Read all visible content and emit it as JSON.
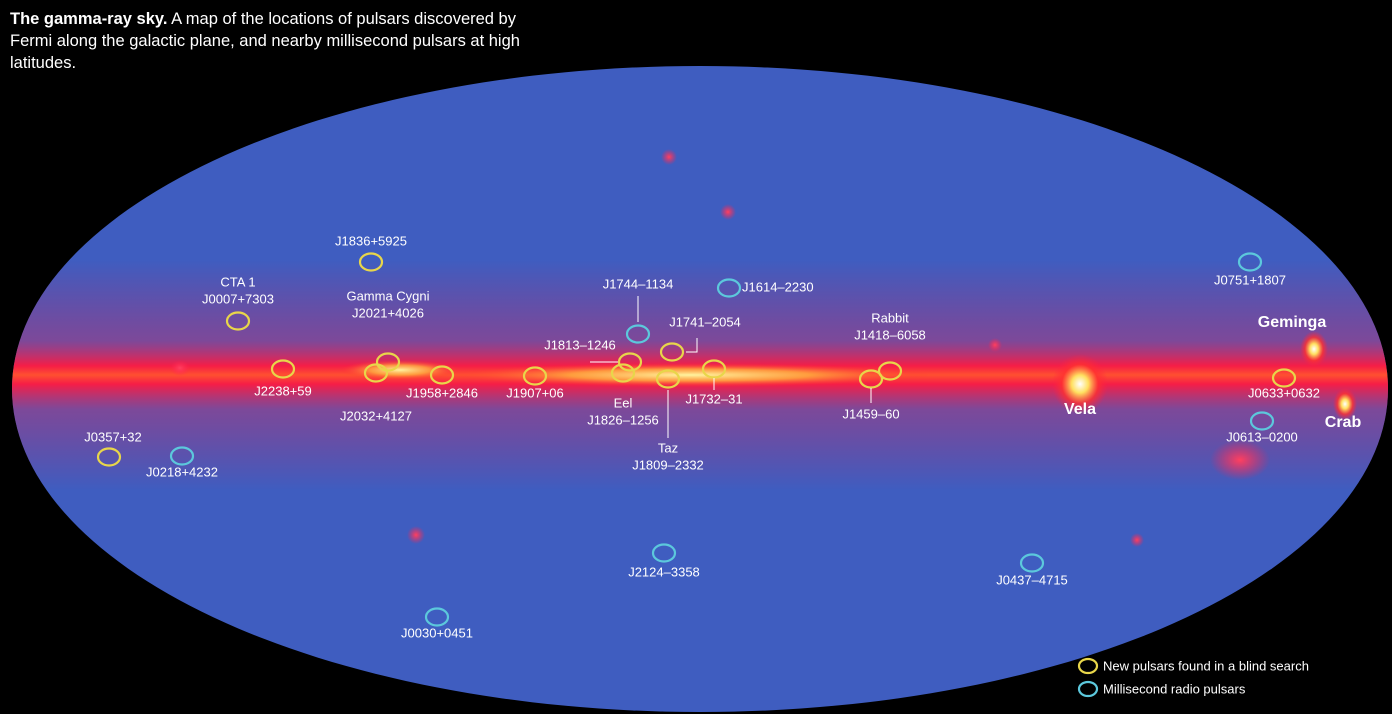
{
  "header": {
    "title": "The gamma-ray sky.",
    "description": "A map of the locations of pulsars discovered by Fermi along the galactic plane, and nearby millisecond pulsars at high latitudes."
  },
  "blind_search_pulsars": [
    {
      "name": "J1836+5925"
    },
    {
      "alias": "CTA 1",
      "name": "J0007+7303"
    },
    {
      "alias": "Gamma Cygni",
      "name": "J2021+4026"
    },
    {
      "name": "J2032+4127"
    },
    {
      "name": "J2238+59"
    },
    {
      "name": "J1958+2846"
    },
    {
      "name": "J1907+06"
    },
    {
      "alias": "Eel",
      "name": "J1826–1256"
    },
    {
      "name": "J1813–1246"
    },
    {
      "name": "J1741–2054"
    },
    {
      "alias": "Taz",
      "name": "J1809–2332"
    },
    {
      "name": "J1732–31"
    },
    {
      "alias": "Rabbit",
      "name": "J1418–6058"
    },
    {
      "name": "J1459–60"
    },
    {
      "name": "J0633+0632"
    },
    {
      "name": "J0357+32"
    }
  ],
  "millisecond_pulsars": [
    {
      "name": "J1744–1134"
    },
    {
      "name": "J1614–2230"
    },
    {
      "name": "J0751+1807"
    },
    {
      "name": "J0613–0200"
    },
    {
      "name": "J0218+4232"
    },
    {
      "name": "J2124–3358"
    },
    {
      "name": "J0437–4715"
    },
    {
      "name": "J0030+0451"
    }
  ],
  "landmarks": [
    "Vela",
    "Geminga",
    "Crab"
  ],
  "legend": {
    "blind_search": "New pulsars found in a blind search",
    "millisecond": "Millisecond radio pulsars"
  }
}
